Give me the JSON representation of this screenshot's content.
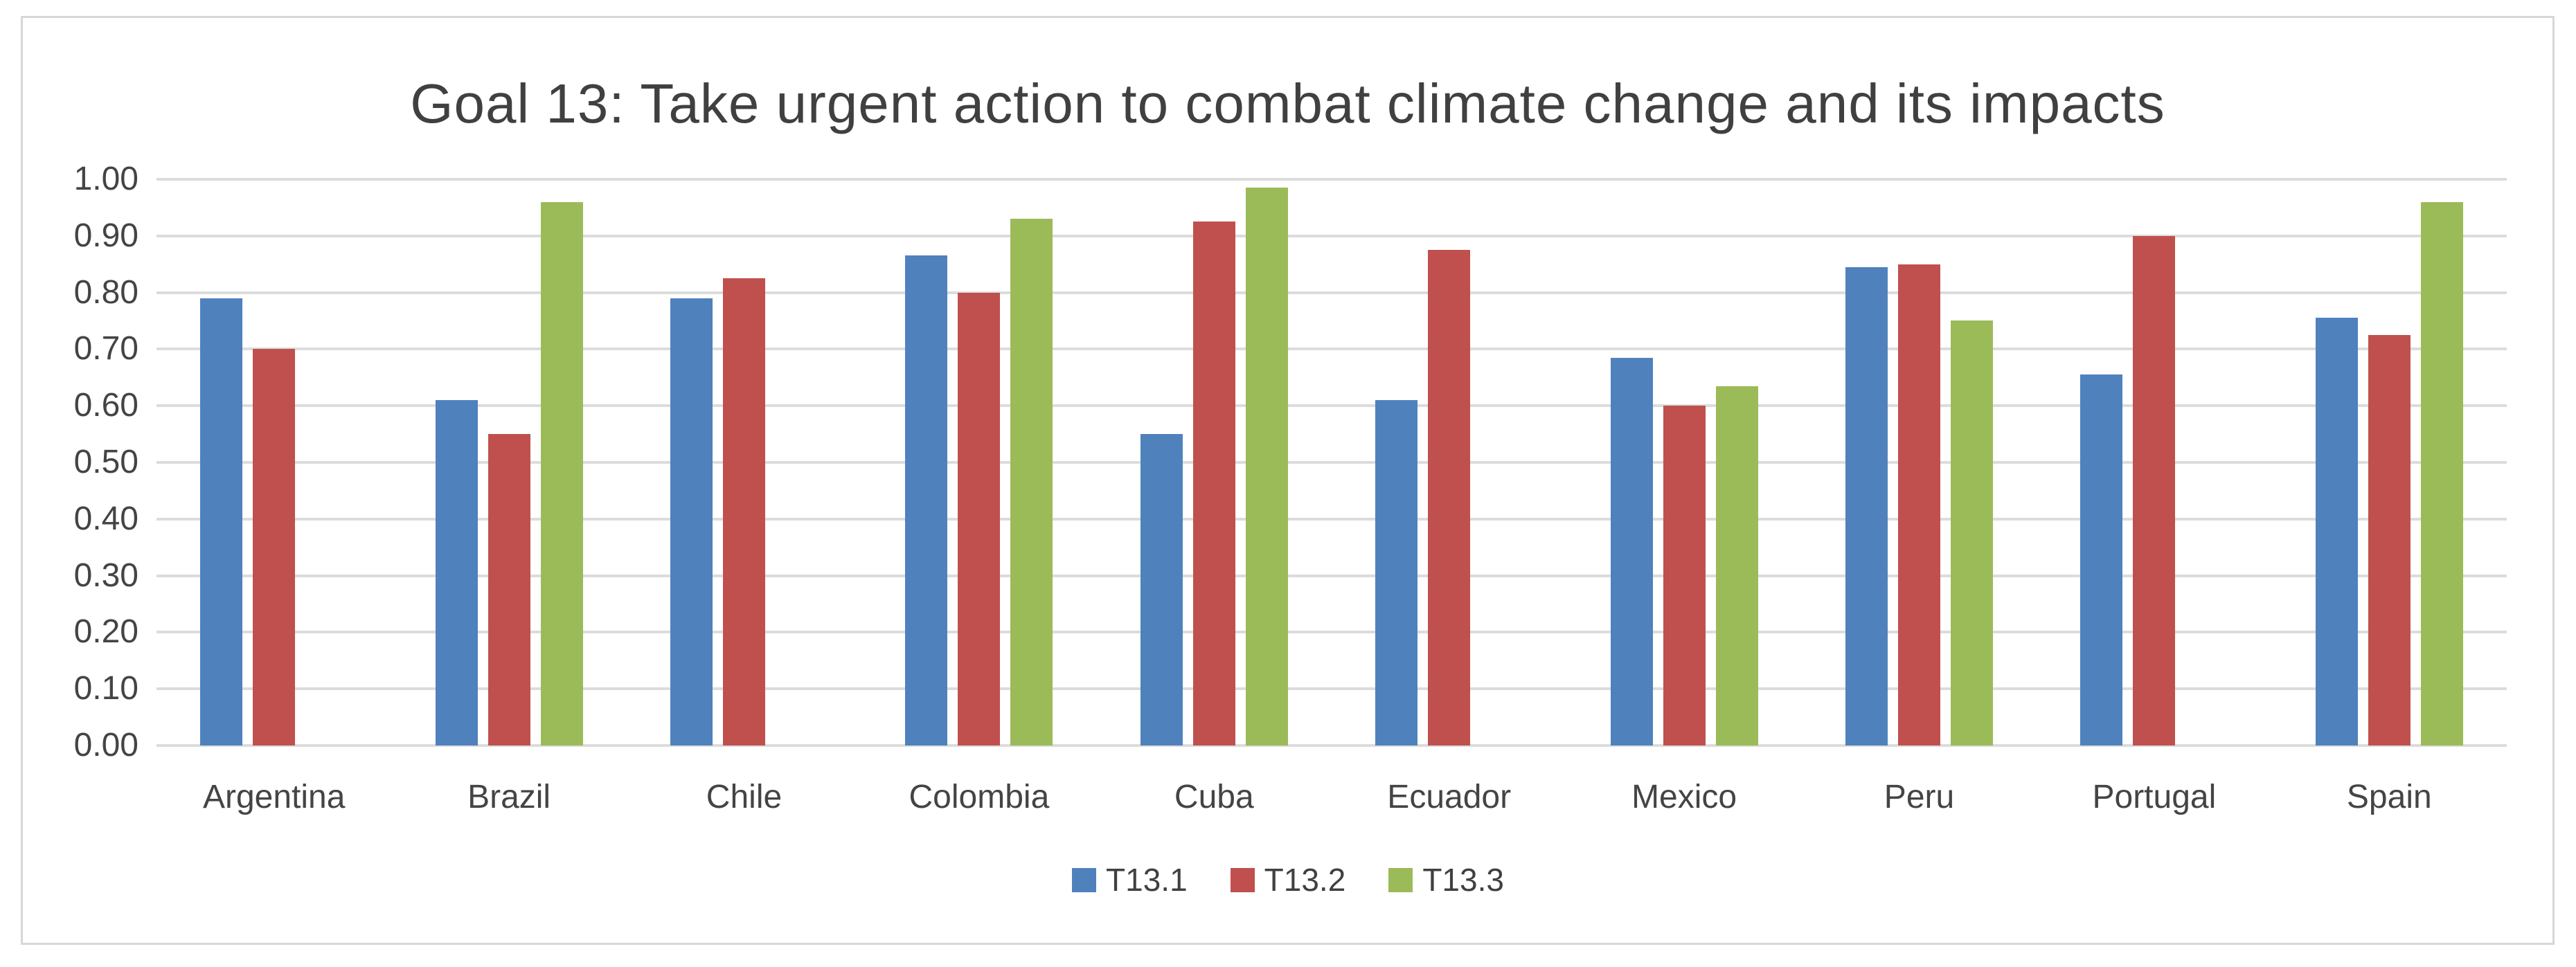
{
  "chart_title": "Goal 13: Take urgent action to combat climate change and its impacts",
  "chart_data": {
    "type": "bar",
    "title": "Goal 13: Take urgent action to combat climate change and its impacts",
    "categories": [
      "Argentina",
      "Brazil",
      "Chile",
      "Colombia",
      "Cuba",
      "Ecuador",
      "Mexico",
      "Peru",
      "Portugal",
      "Spain"
    ],
    "series": [
      {
        "name": "T13.1",
        "color": "#4F81BD",
        "values": [
          0.79,
          0.61,
          0.79,
          0.865,
          0.55,
          0.61,
          0.685,
          0.845,
          0.655,
          0.755
        ]
      },
      {
        "name": "T13.2",
        "color": "#C0504D",
        "values": [
          0.7,
          0.55,
          0.825,
          0.8,
          0.925,
          0.875,
          0.6,
          0.85,
          0.9,
          0.725
        ]
      },
      {
        "name": "T13.3",
        "color": "#9BBB59",
        "values": [
          null,
          0.96,
          null,
          0.93,
          0.985,
          null,
          0.635,
          0.75,
          null,
          0.96
        ]
      }
    ],
    "xlabel": "",
    "ylabel": "",
    "ylim": [
      0.0,
      1.0
    ],
    "y_tick_step": 0.1,
    "y_tick_labels": [
      "1.00",
      "0.90",
      "0.80",
      "0.70",
      "0.60",
      "0.50",
      "0.40",
      "0.30",
      "0.20",
      "0.10",
      "0.00"
    ],
    "grid": true,
    "legend_position": "bottom"
  },
  "colors": {
    "series_blue": "#4F81BD",
    "series_red": "#C0504D",
    "series_green": "#9BBB59",
    "gridline": "#DCDCDC",
    "frame_border": "#D7D7D7",
    "title_text": "#404040",
    "axis_text": "#444444",
    "background": "#FFFFFF"
  }
}
